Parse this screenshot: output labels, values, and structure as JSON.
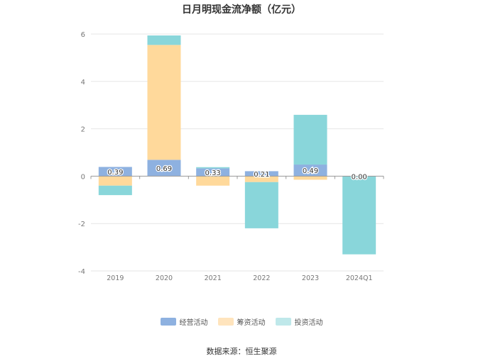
{
  "chart_data": {
    "type": "bar",
    "stacked": true,
    "title": "日月明现金流净额（亿元）",
    "categories": [
      "2019",
      "2020",
      "2021",
      "2022",
      "2023",
      "2024Q1"
    ],
    "series": [
      {
        "name": "经营活动",
        "color": "#8eb1e0",
        "values": [
          0.39,
          0.69,
          0.33,
          0.21,
          0.49,
          0.0
        ]
      },
      {
        "name": "筹资活动",
        "color": "#ffd99b",
        "values": [
          -0.4,
          4.85,
          -0.4,
          -0.25,
          -0.15,
          0
        ]
      },
      {
        "name": "投资活动",
        "color": "#89d6da",
        "values": [
          -0.4,
          0.4,
          0.05,
          -1.95,
          2.1,
          -3.3
        ]
      }
    ],
    "data_labels": [
      "0.39",
      "0.69",
      "0.33",
      "0.21",
      "0.49",
      "0.00"
    ],
    "yticks": [
      "-4",
      "-2",
      "0",
      "2",
      "4",
      "6"
    ],
    "ylim": [
      -4,
      6
    ],
    "xlabel": "",
    "ylabel": "",
    "grid": true,
    "legend_position": "bottom"
  },
  "legend": {
    "items": [
      {
        "label": "经营活动",
        "color": "#8eb1e0"
      },
      {
        "label": "筹资活动",
        "color": "#ffe4bd"
      },
      {
        "label": "投资活动",
        "color": "#bfe8ea"
      }
    ]
  },
  "source_note": "数据来源：恒生聚源"
}
